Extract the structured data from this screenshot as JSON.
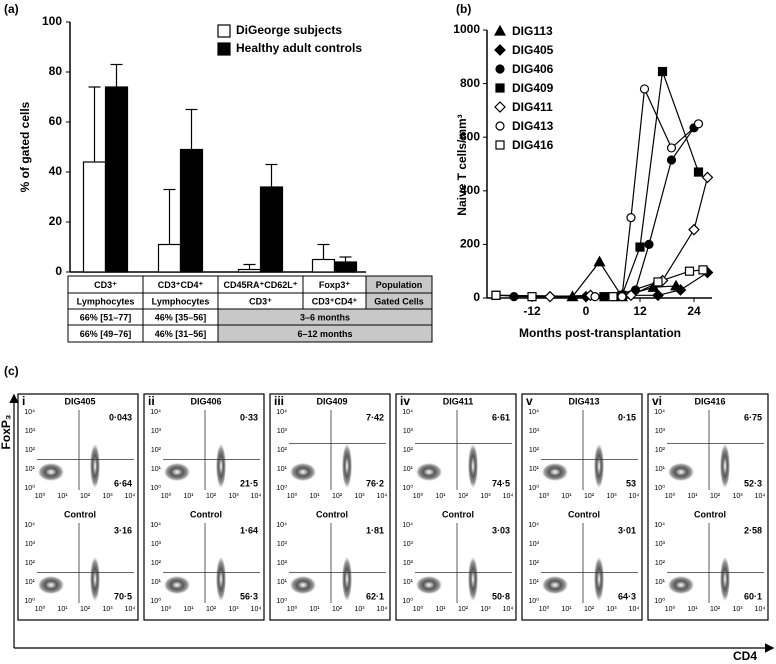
{
  "chart_data": [
    {
      "type": "bar",
      "panel_label": "(a)",
      "y_label": "% of gated cells",
      "categories": [
        "CD3⁺",
        "CD3⁺CD4⁺",
        "CD45RA⁺CD62L⁺",
        "Foxp3⁺"
      ],
      "series": [
        {
          "name": "DiGeorge subjects",
          "color": "#ffffff",
          "values": [
            44,
            11,
            1,
            5
          ],
          "errors": [
            30,
            22,
            2,
            6
          ]
        },
        {
          "name": "Healthy adult controls",
          "color": "#000000",
          "values": [
            74,
            49,
            34,
            4
          ],
          "errors": [
            9,
            16,
            9,
            2
          ]
        }
      ],
      "ylim": [
        0,
        100
      ],
      "yticks": [
        0,
        20,
        40,
        60,
        80,
        100
      ],
      "grid": false
    },
    {
      "type": "line",
      "panel_label": "(b)",
      "x_label": "Months post-transplantation",
      "y_label": "Naive T cells/mm³",
      "series": [
        {
          "name": "DIG113",
          "color": "#000000",
          "marker": "triangle",
          "filled": true,
          "x": [
            -3,
            3,
            8,
            15,
            20
          ],
          "values": [
            5,
            135,
            5,
            40,
            45
          ]
        },
        {
          "name": "DIG405",
          "color": "#000000",
          "marker": "diamond",
          "filled": true,
          "x": [
            0,
            8,
            16,
            21,
            27
          ],
          "values": [
            5,
            10,
            10,
            30,
            95
          ]
        },
        {
          "name": "DIG406",
          "color": "#000000",
          "marker": "circle",
          "filled": true,
          "x": [
            -16,
            6,
            11,
            14,
            19,
            24
          ],
          "values": [
            5,
            5,
            30,
            200,
            515,
            635
          ]
        },
        {
          "name": "DIG409",
          "color": "#000000",
          "marker": "square",
          "filled": true,
          "x": [
            -20,
            4,
            8,
            12,
            17,
            25
          ],
          "values": [
            10,
            5,
            10,
            190,
            845,
            470
          ]
        },
        {
          "name": "DIG411",
          "color": "#000000",
          "marker": "diamond",
          "filled": false,
          "x": [
            -8,
            1,
            10,
            17,
            24,
            27
          ],
          "values": [
            5,
            10,
            10,
            65,
            255,
            450
          ]
        },
        {
          "name": "DIG413",
          "color": "#000000",
          "marker": "circle",
          "filled": false,
          "x": [
            -20,
            2,
            8,
            10,
            13,
            19,
            25
          ],
          "values": [
            10,
            5,
            5,
            300,
            780,
            560,
            650
          ]
        },
        {
          "name": "DIG416",
          "color": "#000000",
          "marker": "square",
          "filled": false,
          "x": [
            -20,
            -12,
            6,
            16,
            23,
            26
          ],
          "values": [
            10,
            5,
            5,
            60,
            100,
            105
          ]
        }
      ],
      "xlim": [
        -22,
        28
      ],
      "xticks": [
        -12,
        0,
        12,
        24
      ],
      "ylim": [
        0,
        1000
      ],
      "yticks": [
        0,
        200,
        400,
        600,
        800,
        1000
      ],
      "grid": false
    }
  ],
  "table": {
    "header_label": "Population",
    "rows": [
      [
        "Lymphocytes",
        "Lymphocytes",
        "CD3⁺",
        "CD3⁺CD4⁺",
        "Gated Cells"
      ],
      [
        "66% [51–77]",
        "46% [35–56]",
        "3–6 months"
      ],
      [
        "66% [49–76]",
        "46% [31–56]",
        "6–12 months"
      ]
    ]
  },
  "flow": {
    "panel_label": "(c)",
    "y_axis_label": "FoxP₃",
    "x_axis_label": "CD4",
    "control_label": "Control",
    "tick_labels": [
      "10⁰",
      "10¹",
      "10²",
      "10³",
      "10⁴"
    ],
    "columns": [
      {
        "numeral": "i",
        "subject": "DIG405",
        "patient": [
          "0·043",
          "6·64"
        ],
        "control": [
          "3·16",
          "70·5"
        ]
      },
      {
        "numeral": "ii",
        "subject": "DIG406",
        "patient": [
          "0·33",
          "21·5"
        ],
        "control": [
          "1·64",
          "56·3"
        ]
      },
      {
        "numeral": "iii",
        "subject": "DIG409",
        "patient": [
          "7·42",
          "76·2"
        ],
        "control": [
          "1·81",
          "62·1"
        ]
      },
      {
        "numeral": "iv",
        "subject": "DIG411",
        "patient": [
          "6·61",
          "74·5"
        ],
        "control": [
          "3·03",
          "50·8"
        ]
      },
      {
        "numeral": "v",
        "subject": "DIG413",
        "patient": [
          "0·15",
          "53"
        ],
        "control": [
          "3·01",
          "64·3"
        ]
      },
      {
        "numeral": "vi",
        "subject": "DIG416",
        "patient": [
          "6·75",
          "52·3"
        ],
        "control": [
          "2·58",
          "60·1"
        ]
      }
    ]
  }
}
